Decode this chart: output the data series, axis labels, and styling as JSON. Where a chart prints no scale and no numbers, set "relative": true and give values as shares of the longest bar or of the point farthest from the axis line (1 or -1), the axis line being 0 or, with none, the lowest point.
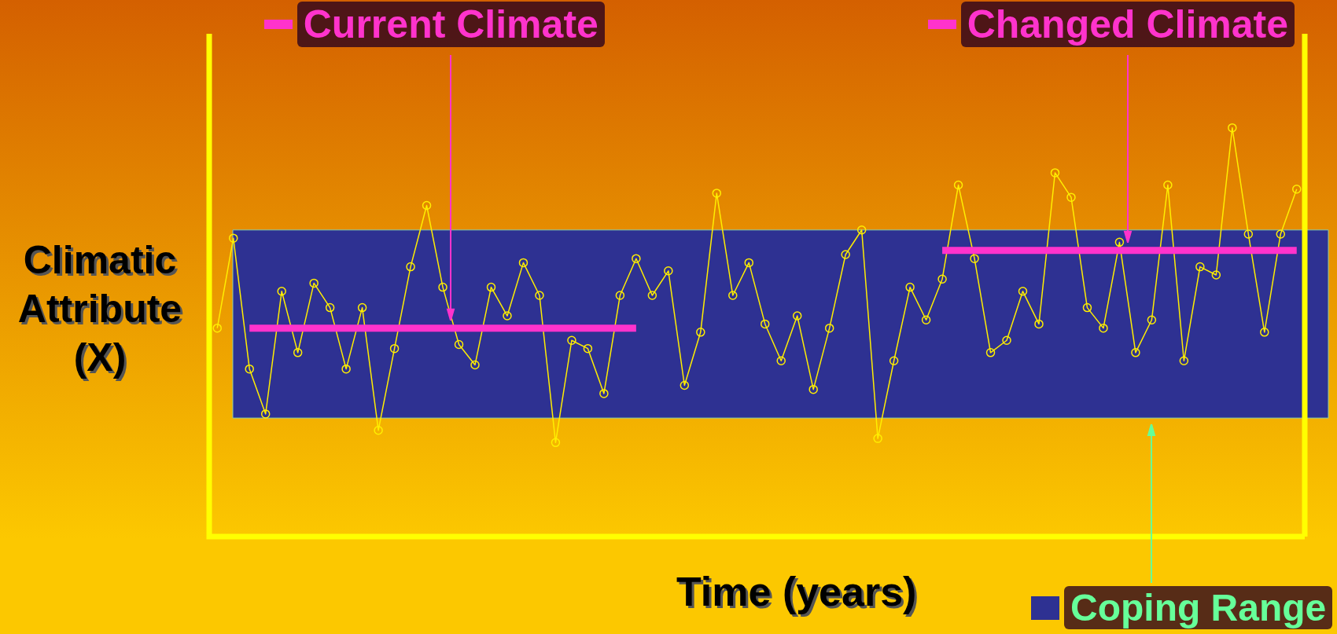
{
  "chart_data": {
    "type": "line",
    "xlabel": "Time (years)",
    "ylabel": "Climatic Attribute (X)",
    "relative": true,
    "tick_labels": false,
    "grid": false,
    "legend": "top",
    "marker": "circle",
    "categories": [
      null,
      null,
      null,
      null,
      null,
      null,
      null,
      null,
      null,
      null,
      null,
      null,
      null,
      null,
      null,
      null,
      null,
      null,
      null,
      null,
      null,
      null,
      null,
      null,
      null,
      null,
      null,
      null,
      null,
      null,
      null,
      null,
      null,
      null,
      null,
      null,
      null,
      null,
      null,
      null,
      null,
      null,
      null,
      null,
      null,
      null,
      null,
      null,
      null,
      null,
      null,
      null,
      null,
      null,
      null,
      null,
      null,
      null,
      null,
      null,
      null,
      null,
      null,
      null,
      null,
      null,
      null,
      null
    ],
    "series": [
      {
        "color": "#ffee00",
        "values": [
          0.51,
          0.73,
          0.41,
          0.3,
          0.6,
          0.45,
          0.62,
          0.56,
          0.41,
          0.56,
          0.26,
          0.46,
          0.66,
          0.81,
          0.61,
          0.47,
          0.42,
          0.61,
          0.54,
          0.67,
          0.59,
          0.23,
          0.48,
          0.46,
          0.35,
          0.59,
          0.68,
          0.59,
          0.65,
          0.37,
          0.5,
          0.84,
          0.59,
          0.67,
          0.52,
          0.43,
          0.54,
          0.36,
          0.51,
          0.69,
          0.75,
          0.24,
          0.43,
          0.61,
          0.53,
          0.63,
          0.86,
          0.68,
          0.45,
          0.48,
          0.6,
          0.52,
          0.89,
          0.83,
          0.56,
          0.51,
          0.72,
          0.45,
          0.53,
          0.86,
          0.43,
          0.66,
          0.64,
          1.0,
          0.74,
          0.5,
          0.74,
          0.85
        ]
      },
      {
        "name": "Current Climate",
        "color": "#ff33cc",
        "marker": "none",
        "values": [
          null,
          null,
          0.51,
          0.51,
          0.51,
          0.51,
          0.51,
          0.51,
          0.51,
          0.51,
          0.51,
          0.51,
          0.51,
          0.51,
          0.51,
          0.51,
          0.51,
          0.51,
          0.51,
          0.51,
          0.51,
          0.51,
          0.51,
          0.51,
          0.51,
          0.51,
          0.51,
          null,
          null,
          null,
          null,
          null,
          null,
          null,
          null,
          null,
          null,
          null,
          null,
          null,
          null,
          null,
          null,
          null,
          null,
          null,
          null,
          null,
          null,
          null,
          null,
          null,
          null,
          null,
          null,
          null,
          null,
          null,
          null,
          null,
          null,
          null,
          null,
          null,
          null,
          null,
          null,
          null
        ]
      },
      {
        "name": "Changed Climate",
        "color": "#ff33cc",
        "marker": "none",
        "values": [
          null,
          null,
          null,
          null,
          null,
          null,
          null,
          null,
          null,
          null,
          null,
          null,
          null,
          null,
          null,
          null,
          null,
          null,
          null,
          null,
          null,
          null,
          null,
          null,
          null,
          null,
          null,
          null,
          null,
          null,
          null,
          null,
          null,
          null,
          null,
          null,
          null,
          null,
          null,
          null,
          null,
          null,
          null,
          null,
          null,
          0.7,
          0.7,
          0.7,
          0.7,
          0.7,
          0.7,
          0.7,
          0.7,
          0.7,
          0.7,
          0.7,
          0.7,
          0.7,
          0.7,
          0.7,
          0.7,
          0.7,
          0.7,
          0.7,
          0.7,
          0.7,
          0.7,
          0.7
        ]
      }
    ],
    "bands": [
      {
        "axis": "y",
        "from": 0.29,
        "to": 0.75,
        "label": "Coping Range",
        "color": "#2e3192"
      }
    ]
  }
}
